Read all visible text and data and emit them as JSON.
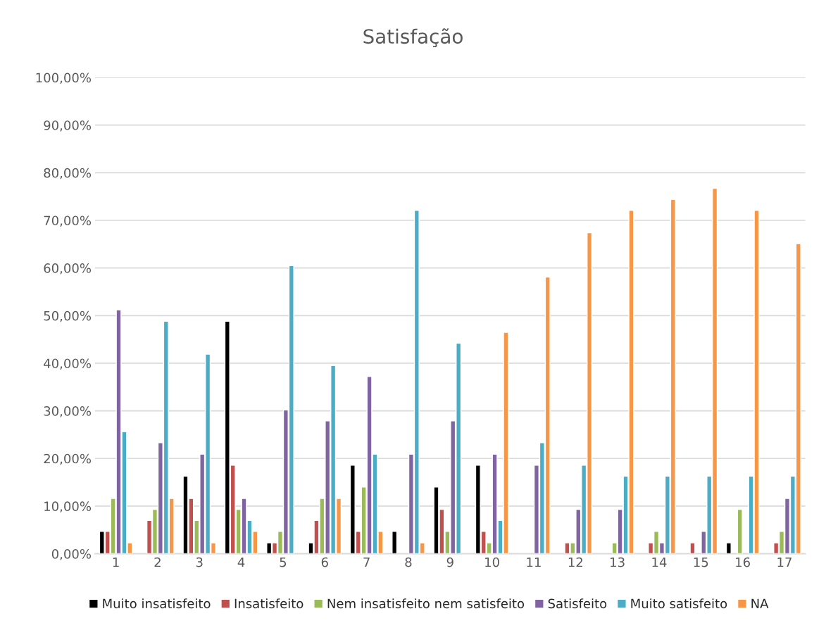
{
  "chart_data": {
    "type": "bar",
    "title": "Satisfação",
    "categories": [
      "1",
      "2",
      "3",
      "4",
      "5",
      "6",
      "7",
      "8",
      "9",
      "10",
      "11",
      "12",
      "13",
      "14",
      "15",
      "16",
      "17"
    ],
    "series": [
      {
        "name": "Muito insatisfeito",
        "color": "#000000",
        "values": [
          4.7,
          null,
          16.3,
          48.8,
          2.3,
          2.3,
          18.6,
          4.7,
          14.0,
          18.6,
          null,
          null,
          null,
          null,
          null,
          2.3,
          null
        ]
      },
      {
        "name": "Insatisfeito",
        "color": "#c0504d",
        "values": [
          4.7,
          7.0,
          11.6,
          18.6,
          2.3,
          7.0,
          4.7,
          null,
          9.3,
          4.7,
          null,
          2.3,
          null,
          2.3,
          2.3,
          null,
          2.3
        ]
      },
      {
        "name": "Nem insatisfeito nem satisfeito",
        "color": "#9bbb59",
        "values": [
          11.6,
          9.3,
          7.0,
          9.3,
          4.7,
          11.6,
          14.0,
          null,
          4.7,
          2.3,
          null,
          2.3,
          2.3,
          4.7,
          null,
          9.3,
          4.7
        ]
      },
      {
        "name": "Satisfeito",
        "color": "#8064a2",
        "values": [
          51.2,
          23.3,
          20.9,
          11.6,
          30.2,
          27.9,
          37.2,
          20.9,
          27.9,
          20.9,
          18.6,
          9.3,
          9.3,
          2.3,
          4.7,
          null,
          11.6
        ]
      },
      {
        "name": "Muito satisfeito",
        "color": "#4bacc6",
        "values": [
          25.6,
          48.8,
          41.9,
          7.0,
          60.5,
          39.5,
          20.9,
          72.1,
          44.2,
          7.0,
          23.3,
          18.6,
          16.3,
          16.3,
          16.3,
          16.3,
          16.3
        ]
      },
      {
        "name": "NA",
        "color": "#f79646",
        "values": [
          2.3,
          11.6,
          2.3,
          4.7,
          null,
          11.6,
          4.7,
          2.3,
          null,
          46.5,
          58.1,
          67.4,
          72.1,
          74.4,
          76.7,
          72.1,
          65.1
        ]
      }
    ],
    "ylim": [
      0,
      100
    ],
    "yticks": [
      {
        "value": 0,
        "label": "0,00%"
      },
      {
        "value": 10,
        "label": "10,00%"
      },
      {
        "value": 20,
        "label": "20,00%"
      },
      {
        "value": 30,
        "label": "30,00%"
      },
      {
        "value": 40,
        "label": "40,00%"
      },
      {
        "value": 50,
        "label": "50,00%"
      },
      {
        "value": 60,
        "label": "60,00%"
      },
      {
        "value": 70,
        "label": "70,00%"
      },
      {
        "value": 80,
        "label": "80,00%"
      },
      {
        "value": 90,
        "label": "90,00%"
      },
      {
        "value": 100,
        "label": "100,00%"
      }
    ],
    "grid": "y",
    "legend": "bottom"
  }
}
